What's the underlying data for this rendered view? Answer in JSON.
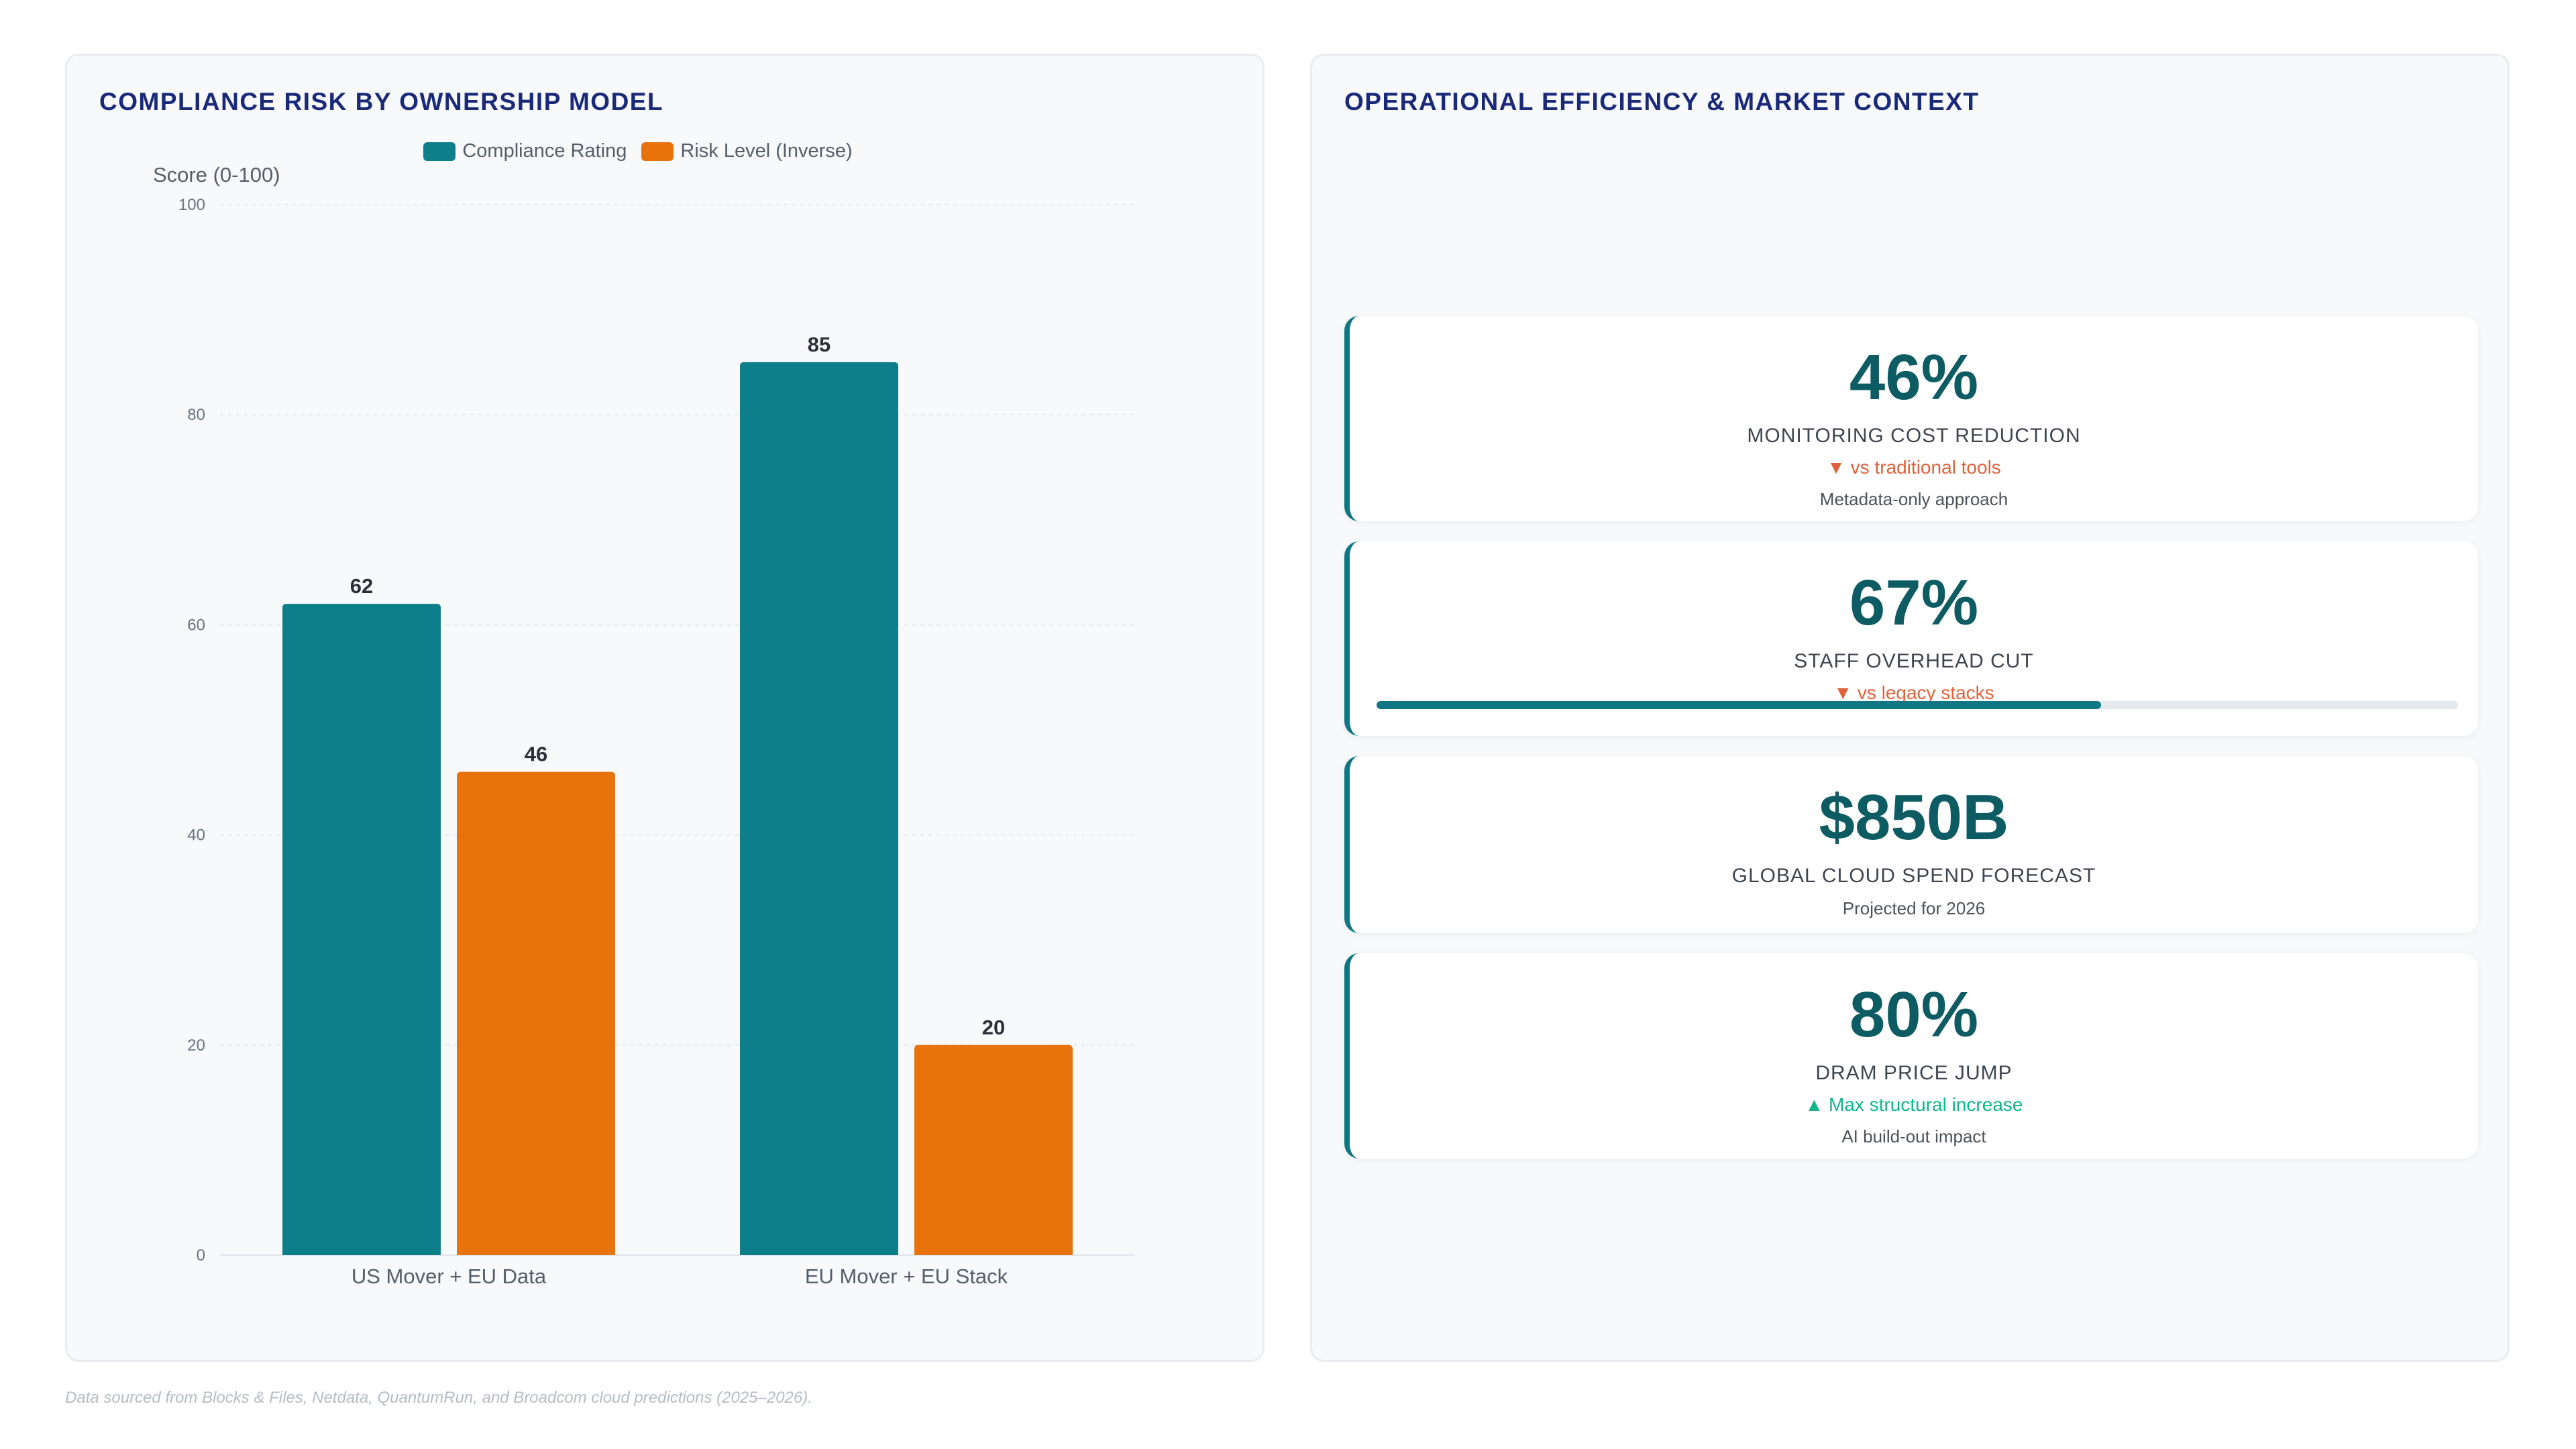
{
  "left_panel": {
    "title": "COMPLIANCE RISK BY OWNERSHIP MODEL"
  },
  "right_panel": {
    "title": "OPERATIONAL EFFICIENCY & MARKET CONTEXT"
  },
  "chart_data": {
    "type": "bar",
    "categories": [
      "US Mover + EU Data",
      "EU Mover + EU Stack"
    ],
    "series": [
      {
        "name": "Compliance Rating",
        "values": [
          62,
          85
        ],
        "color": "#0e7f8a"
      },
      {
        "name": "Risk Level (Inverse)",
        "values": [
          46,
          20
        ],
        "color": "#e8720c"
      }
    ],
    "ylabel": "Score (0-100)",
    "xlabel": "",
    "ylim": [
      0,
      100
    ],
    "yticks": [
      0,
      20,
      40,
      60,
      80,
      100
    ],
    "grid": true,
    "legend_position": "top-center",
    "data_labels": true
  },
  "cards": [
    {
      "value": "46%",
      "label": "MONITORING COST REDUCTION",
      "trend": "▼ vs traditional tools",
      "trend_dir": "down",
      "note": "Metadata-only approach"
    },
    {
      "value": "67%",
      "label": "STAFF OVERHEAD CUT",
      "trend": "▼ vs legacy stacks",
      "trend_dir": "down",
      "progress": 0.67
    },
    {
      "value": "$850B",
      "label": "GLOBAL CLOUD SPEND FORECAST",
      "note": "Projected for 2026"
    },
    {
      "value": "80%",
      "label": "DRAM PRICE JUMP",
      "trend": "▲ Max structural increase",
      "trend_dir": "up",
      "note": "AI build-out impact"
    }
  ],
  "footnote": "Data sourced from Blocks & Files, Netdata, QuantumRun, and Broadcom cloud predictions (2025–2026).",
  "colors": {
    "accent": "#0e7783",
    "title": "#1a2a78",
    "down": "#e0623a",
    "up": "#10b58c"
  }
}
